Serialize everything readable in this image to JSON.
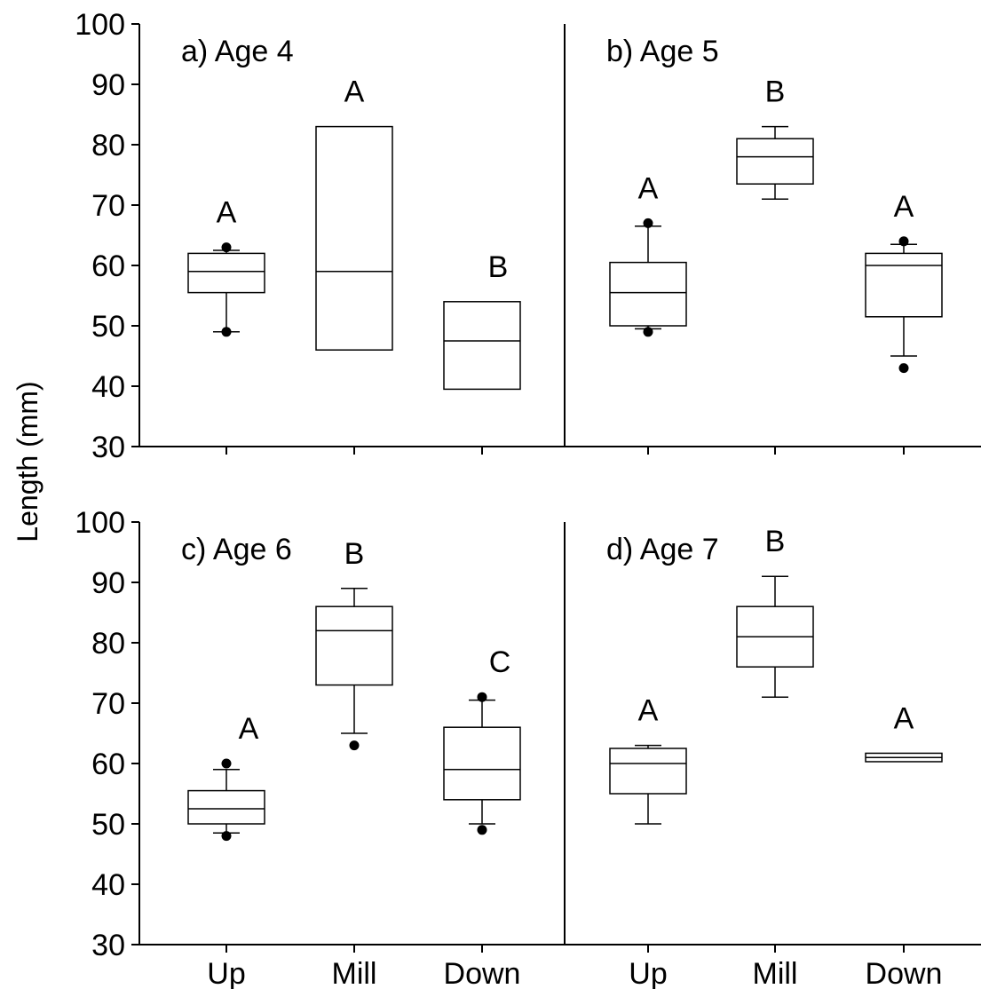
{
  "chart_data": {
    "type": "boxplot",
    "ylabel": "Length (mm)",
    "ylim": [
      30,
      100
    ],
    "yticks": [
      "30",
      "40",
      "50",
      "60",
      "70",
      "80",
      "90",
      "100"
    ],
    "categories": [
      "Up",
      "Mill",
      "Down"
    ],
    "grid": false,
    "panels": [
      {
        "title": "a) Age 4",
        "boxes": [
          {
            "category": "Up",
            "whisker_low": 49,
            "q1": 55.5,
            "median": 59,
            "q3": 62,
            "whisker_high": 62.5,
            "outliers": [
              63,
              49
            ],
            "letter": "A"
          },
          {
            "category": "Mill",
            "whisker_low": null,
            "q1": 46,
            "median": 59,
            "q3": 83,
            "whisker_high": null,
            "outliers": [],
            "letter": "A"
          },
          {
            "category": "Down",
            "whisker_low": null,
            "q1": 39.5,
            "median": 47.5,
            "q3": 54,
            "whisker_high": null,
            "outliers": [],
            "letter": "B"
          }
        ]
      },
      {
        "title": "b) Age 5",
        "boxes": [
          {
            "category": "Up",
            "whisker_low": 49.5,
            "q1": 50,
            "median": 55.5,
            "q3": 60.5,
            "whisker_high": 66.5,
            "outliers": [
              67,
              49
            ],
            "letter": "A"
          },
          {
            "category": "Mill",
            "whisker_low": 71,
            "q1": 73.5,
            "median": 78,
            "q3": 81,
            "whisker_high": 83,
            "outliers": [],
            "letter": "B"
          },
          {
            "category": "Down",
            "whisker_low": 45,
            "q1": 51.5,
            "median": 60,
            "q3": 62,
            "whisker_high": 63.5,
            "outliers": [
              64,
              43
            ],
            "letter": "A"
          }
        ]
      },
      {
        "title": "c) Age 6",
        "boxes": [
          {
            "category": "Up",
            "whisker_low": 48.5,
            "q1": 50,
            "median": 52.5,
            "q3": 55.5,
            "whisker_high": 59,
            "outliers": [
              60,
              48
            ],
            "letter": "A"
          },
          {
            "category": "Mill",
            "whisker_low": 65,
            "q1": 73,
            "median": 82,
            "q3": 86,
            "whisker_high": 89,
            "outliers": [
              63
            ],
            "letter": "B"
          },
          {
            "category": "Down",
            "whisker_low": 50,
            "q1": 54,
            "median": 59,
            "q3": 66,
            "whisker_high": 70.5,
            "outliers": [
              71,
              49
            ],
            "letter": "C"
          }
        ]
      },
      {
        "title": "d) Age 7",
        "boxes": [
          {
            "category": "Up",
            "whisker_low": 50,
            "q1": 55,
            "median": 60,
            "q3": 62.5,
            "whisker_high": 63,
            "outliers": [],
            "letter": "A"
          },
          {
            "category": "Mill",
            "whisker_low": 71,
            "q1": 76,
            "median": 81,
            "q3": 86,
            "whisker_high": 91,
            "outliers": [],
            "letter": "B"
          },
          {
            "category": "Down",
            "whisker_low": null,
            "q1": 60.3,
            "median": 61,
            "q3": 61.7,
            "whisker_high": null,
            "outliers": [],
            "letter": "A"
          }
        ]
      }
    ]
  }
}
